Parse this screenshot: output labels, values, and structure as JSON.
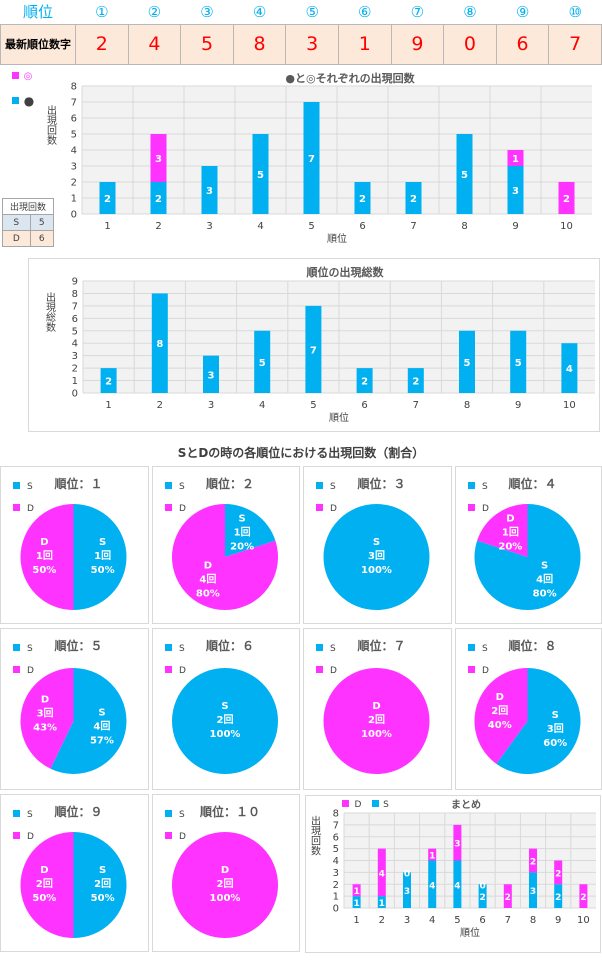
{
  "header": {
    "rank_label": "順位",
    "numbers": [
      "①",
      "②",
      "③",
      "④",
      "⑤",
      "⑥",
      "⑦",
      "⑧",
      "⑨",
      "⑩"
    ],
    "latest_label": "最新順位数字",
    "latest_digits": [
      "2",
      "4",
      "5",
      "8",
      "3",
      "1",
      "9",
      "0",
      "6",
      "7"
    ]
  },
  "mini_table": {
    "title": "出現回数",
    "rows": [
      {
        "k": "S",
        "v": "5"
      },
      {
        "k": "D",
        "v": "6"
      }
    ]
  },
  "colors": {
    "cyan": "#00b0f0",
    "magenta": "#ff33ff",
    "grid": "#d9d9d9",
    "plot_bg": "#f2f2f2"
  },
  "section_title": "SとDの時の各順位における出現回数（割合）",
  "chart_data": [
    {
      "type": "bar",
      "title": "●と◎それぞれの出現回数",
      "xlabel": "順位",
      "ylabel": "出現回数",
      "ylim": [
        0,
        8
      ],
      "grid": true,
      "legend": [
        "◎",
        "●"
      ],
      "legend_position": "top-left",
      "categories": [
        "1",
        "2",
        "3",
        "4",
        "5",
        "6",
        "7",
        "8",
        "9",
        "10"
      ],
      "series": [
        {
          "name": "●",
          "values": [
            2,
            2,
            3,
            5,
            7,
            2,
            2,
            5,
            3,
            0
          ]
        },
        {
          "name": "◎",
          "values": [
            0,
            3,
            0,
            0,
            0,
            0,
            0,
            0,
            1,
            2
          ]
        }
      ]
    },
    {
      "type": "bar",
      "title": "順位の出現総数",
      "xlabel": "順位",
      "ylabel": "出現総数",
      "ylim": [
        0,
        9
      ],
      "grid": true,
      "categories": [
        "1",
        "2",
        "3",
        "4",
        "5",
        "6",
        "7",
        "8",
        "9",
        "10"
      ],
      "values": [
        2,
        8,
        3,
        5,
        7,
        2,
        2,
        5,
        5,
        4
      ]
    },
    {
      "type": "pie",
      "pies": [
        {
          "title": "順位：１",
          "legend": [
            "S",
            "D"
          ],
          "S": 1,
          "D": 1,
          "S_pct": "50%",
          "D_pct": "50%"
        },
        {
          "title": "順位：２",
          "legend": [
            "S",
            "D"
          ],
          "S": 1,
          "D": 4,
          "S_pct": "20%",
          "D_pct": "80%"
        },
        {
          "title": "順位：３",
          "legend": [
            "S",
            "D"
          ],
          "S": 3,
          "D": 0,
          "S_pct": "100%",
          "D_pct": "0%"
        },
        {
          "title": "順位：４",
          "legend": [
            "S",
            "D"
          ],
          "S": 4,
          "D": 1,
          "S_pct": "80%",
          "D_pct": "20%"
        },
        {
          "title": "順位：５",
          "legend": [
            "S",
            "D"
          ],
          "S": 4,
          "D": 3,
          "S_pct": "57%",
          "D_pct": "43%"
        },
        {
          "title": "順位：６",
          "legend": [
            "S",
            "D"
          ],
          "S": 2,
          "D": 0,
          "S_pct": "100%",
          "D_pct": "0%"
        },
        {
          "title": "順位：７",
          "legend": [
            "S",
            "D"
          ],
          "S": 0,
          "D": 2,
          "S_pct": "0%",
          "D_pct": "100%"
        },
        {
          "title": "順位：８",
          "legend": [
            "S",
            "D"
          ],
          "S": 3,
          "D": 2,
          "S_pct": "60%",
          "D_pct": "40%"
        },
        {
          "title": "順位：９",
          "legend": [
            "S",
            "D"
          ],
          "S": 2,
          "D": 2,
          "S_pct": "50%",
          "D_pct": "50%"
        },
        {
          "title": "順位：１０",
          "legend": [
            "S",
            "D"
          ],
          "S": 0,
          "D": 2,
          "S_pct": "0%",
          "D_pct": "100%"
        }
      ]
    },
    {
      "type": "bar",
      "title": "まとめ",
      "xlabel": "順位",
      "ylabel": "出現回数",
      "ylim": [
        0,
        8
      ],
      "grid": true,
      "legend": [
        "D",
        "S"
      ],
      "legend_position": "top-left",
      "categories": [
        "1",
        "2",
        "3",
        "4",
        "5",
        "6",
        "7",
        "8",
        "9",
        "10"
      ],
      "series": [
        {
          "name": "S",
          "values": [
            1,
            1,
            3,
            4,
            4,
            2,
            0,
            3,
            2,
            0
          ]
        },
        {
          "name": "D",
          "values": [
            1,
            4,
            0,
            1,
            3,
            0,
            2,
            2,
            2,
            2
          ]
        }
      ]
    }
  ]
}
